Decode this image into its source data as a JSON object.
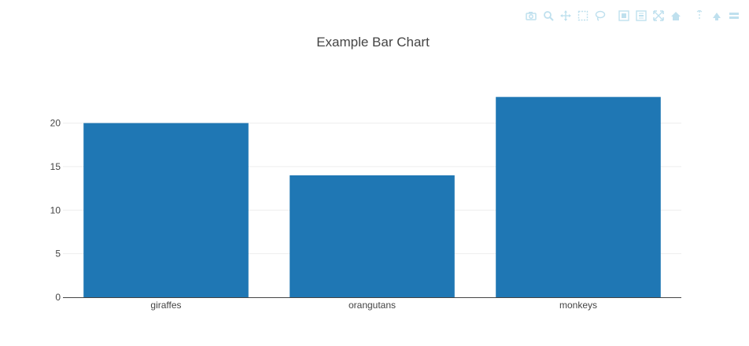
{
  "colors": {
    "bar": "#1f77b4",
    "grid": "#eeeeee",
    "axis": "#444444",
    "modebar_icon": "#bfe0ee"
  },
  "modebar": {
    "buttons": [
      {
        "name": "camera-icon"
      },
      {
        "name": "zoom-icon"
      },
      {
        "name": "pan-icon"
      },
      {
        "name": "box-select-icon"
      },
      {
        "name": "lasso-select-icon"
      },
      {
        "name": "zoom-in-icon"
      },
      {
        "name": "zoom-out-icon"
      },
      {
        "name": "autoscale-icon"
      },
      {
        "name": "reset-axes-icon"
      },
      {
        "name": "spike-lines-icon"
      },
      {
        "name": "hover-closest-icon"
      },
      {
        "name": "hover-compare-icon"
      }
    ]
  },
  "chart_data": {
    "type": "bar",
    "title": "Example Bar Chart",
    "categories": [
      "giraffes",
      "orangutans",
      "monkeys"
    ],
    "values": [
      20,
      14,
      23
    ],
    "ylim": [
      0,
      24.2
    ],
    "yticks": [
      0,
      5,
      10,
      15,
      20
    ],
    "grid": true,
    "xlabel": "",
    "ylabel": ""
  }
}
